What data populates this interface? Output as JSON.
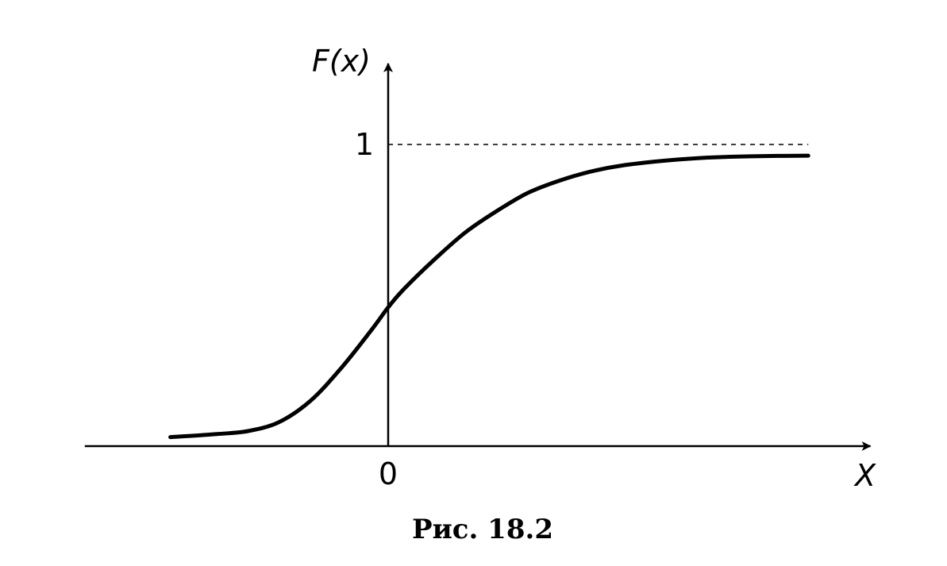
{
  "chart_data": {
    "type": "line",
    "title": "",
    "xlabel": "X",
    "ylabel": "F(x)",
    "xlim": [
      -3.9,
      6.2
    ],
    "ylim": [
      0,
      1.15
    ],
    "x_ticks": [
      {
        "value": 0,
        "label": "0"
      }
    ],
    "y_ticks": [
      {
        "value": 1,
        "label": "1"
      }
    ],
    "reference_lines": [
      {
        "axis": "y",
        "value": 1,
        "style": "dashed"
      }
    ],
    "grid": false,
    "legend": "none",
    "series": [
      {
        "x": [
          -2.8,
          -2.2,
          -1.8,
          -1.4,
          -1.0,
          -0.6,
          -0.2,
          0.0,
          0.2,
          0.6,
          1.0,
          1.4,
          1.8,
          2.2,
          2.6,
          3.0,
          3.5,
          4.0,
          4.5,
          5.0,
          5.4
        ],
        "values": [
          0.03,
          0.04,
          0.05,
          0.08,
          0.15,
          0.26,
          0.39,
          0.46,
          0.52,
          0.62,
          0.71,
          0.78,
          0.84,
          0.88,
          0.91,
          0.93,
          0.945,
          0.955,
          0.96,
          0.962,
          0.963
        ]
      }
    ]
  },
  "caption": "Рис. 18.2"
}
